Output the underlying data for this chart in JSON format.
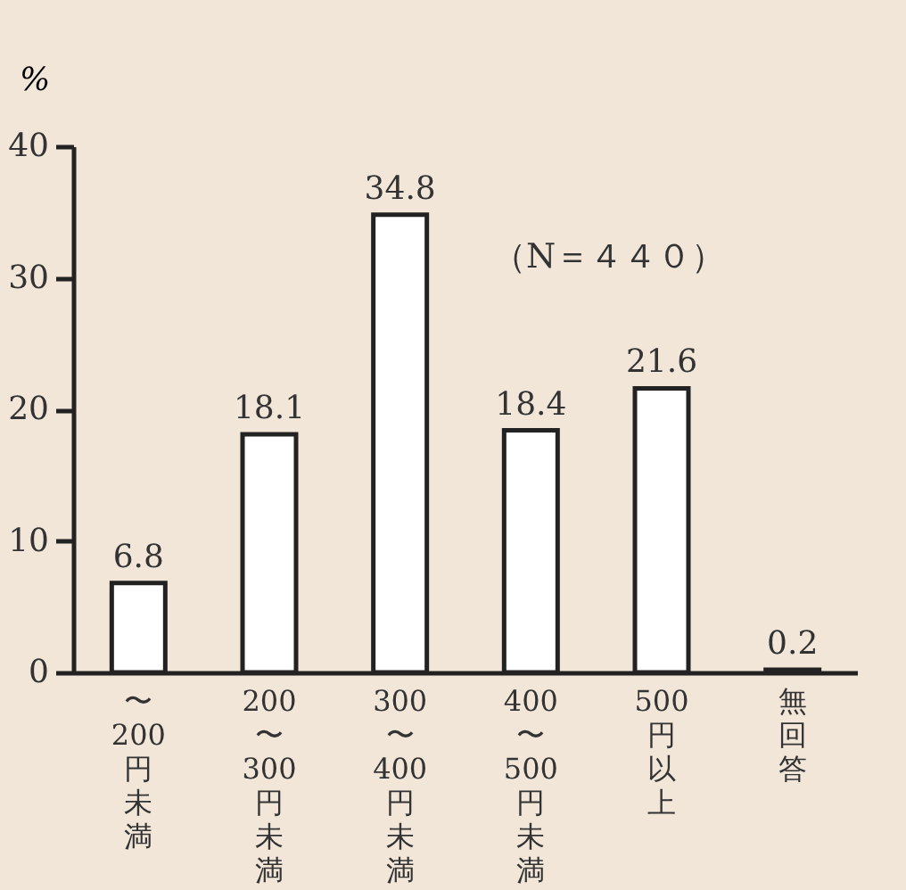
{
  "chart_data": {
    "type": "bar",
    "ylabel": "%",
    "categories": [
      "〜200円未満",
      "200〜300円未満",
      "300〜400円未満",
      "400〜500円未満",
      "500円以上",
      "無回答"
    ],
    "values": [
      6.8,
      18.1,
      34.8,
      18.4,
      21.6,
      0.2
    ],
    "color": "#ffffff",
    "ylim": [
      0,
      40
    ],
    "yticks": [
      0,
      10,
      20,
      30,
      40
    ],
    "data_labels": true,
    "grid": false,
    "annotations": [
      "（N＝４４０）"
    ]
  }
}
